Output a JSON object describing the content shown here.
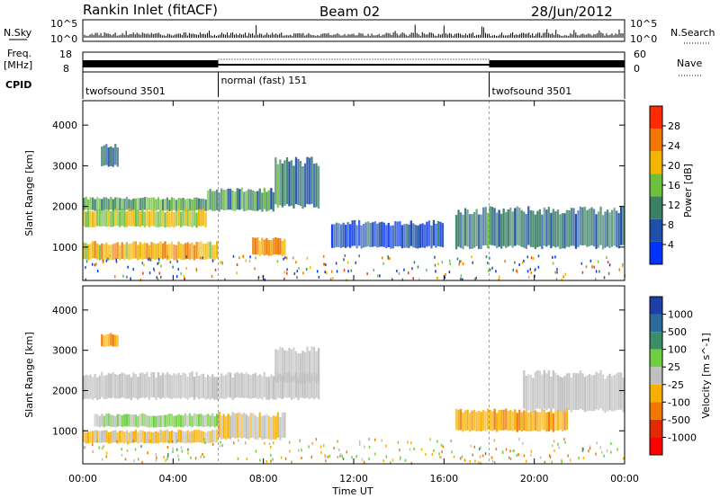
{
  "header": {
    "site": "Rankin Inlet (fitACF)",
    "beam": "Beam 02",
    "date": "28/Jun/2012"
  },
  "panels_left": {
    "nsky": "N.Sky",
    "freq": "Freq.",
    "freq_unit": "[MHz]",
    "cpid": "CPID",
    "ticks_nsky": [
      "10^5",
      "10^0"
    ],
    "ticks_freq": [
      "18",
      "8"
    ]
  },
  "panels_right": {
    "nsearch": "N.Search",
    "nave": "Nave",
    "ticks_nsearch": [
      "10^5",
      "10^0"
    ],
    "ticks_nave": [
      "60",
      "0"
    ]
  },
  "cpid_modes": [
    {
      "label": "twofsound 3501",
      "start": 0,
      "end": 6
    },
    {
      "label": "normal (fast) 151",
      "start": 6,
      "end": 18
    },
    {
      "label": "twofsound 3501",
      "start": 18,
      "end": 24
    }
  ],
  "axes": {
    "x_ticks": [
      "00:00",
      "04:00",
      "08:00",
      "12:00",
      "16:00",
      "20:00",
      "00:00"
    ],
    "x_label": "Time UT",
    "y_label": "Slant Range [km]",
    "y_ticks": [
      "1000",
      "2000",
      "3000",
      "4000"
    ]
  },
  "colorbar_power": {
    "label": "Power [dB]",
    "ticks": [
      "4",
      "8",
      "12",
      "16",
      "20",
      "24",
      "28"
    ],
    "colors": [
      "#0033ff",
      "#1f4fa8",
      "#3a7f66",
      "#6fbf3f",
      "#f2b600",
      "#f07800",
      "#ff2a00"
    ]
  },
  "colorbar_velocity": {
    "label": "Velocity [m s^-1]",
    "ticks": [
      "1000",
      "500",
      "100",
      "25",
      "-25",
      "-100",
      "-500",
      "-1000"
    ],
    "colors": [
      "#1f3fa8",
      "#2b6a9a",
      "#3a8f66",
      "#6fcf3f",
      "#bfbfbf",
      "#f7b000",
      "#f07800",
      "#e02a00",
      "#ff0000"
    ]
  },
  "chart_data": [
    {
      "type": "heatmap",
      "name": "power",
      "title": "Rankin Inlet (fitACF) Beam 02 28/Jun/2012",
      "xlabel": "Time UT",
      "ylabel": "Slant Range [km]",
      "xlim": [
        0,
        24
      ],
      "ylim": [
        180,
        4600
      ],
      "zlabel": "Power [dB]",
      "zlim": [
        0,
        32
      ],
      "bands": [
        {
          "t0": 0.0,
          "t1": 5.5,
          "r0": 1900,
          "r1": 2200,
          "z": 14
        },
        {
          "t0": 0.0,
          "t1": 5.5,
          "r0": 1500,
          "r1": 1900,
          "z": 18
        },
        {
          "t0": 0.0,
          "t1": 6.0,
          "r0": 700,
          "r1": 1100,
          "z": 22
        },
        {
          "t0": 5.5,
          "t1": 8.5,
          "r0": 1900,
          "r1": 2400,
          "z": 12
        },
        {
          "t0": 8.5,
          "t1": 10.5,
          "r0": 2000,
          "r1": 3100,
          "z": 10
        },
        {
          "t0": 7.5,
          "t1": 9.0,
          "r0": 800,
          "r1": 1200,
          "z": 24
        },
        {
          "t0": 11.0,
          "t1": 16.0,
          "r0": 1000,
          "r1": 1600,
          "z": 6
        },
        {
          "t0": 16.5,
          "t1": 24.0,
          "r0": 1000,
          "r1": 1900,
          "z": 10
        },
        {
          "t0": 0.8,
          "t1": 1.6,
          "r0": 3000,
          "r1": 3500,
          "z": 8
        }
      ]
    },
    {
      "type": "heatmap",
      "name": "velocity",
      "xlabel": "Time UT",
      "ylabel": "Slant Range [km]",
      "xlim": [
        0,
        24
      ],
      "ylim": [
        180,
        4600
      ],
      "zlabel": "Velocity [m s^-1]",
      "zlim": [
        -1000,
        1000
      ],
      "bands": [
        {
          "t0": 0.0,
          "t1": 10.5,
          "r0": 1800,
          "r1": 2400,
          "z": 0
        },
        {
          "t0": 0.0,
          "t1": 6.0,
          "r0": 700,
          "r1": 1000,
          "z": -150
        },
        {
          "t0": 0.5,
          "t1": 6.0,
          "r0": 1100,
          "r1": 1400,
          "z": 150
        },
        {
          "t0": 6.0,
          "t1": 9.0,
          "r0": 800,
          "r1": 1400,
          "z": -120
        },
        {
          "t0": 8.5,
          "t1": 10.5,
          "r0": 2200,
          "r1": 3000,
          "z": 0
        },
        {
          "t0": 16.5,
          "t1": 21.5,
          "r0": 1000,
          "r1": 1500,
          "z": -300
        },
        {
          "t0": 19.5,
          "t1": 24.0,
          "r0": 1500,
          "r1": 2400,
          "z": 0
        },
        {
          "t0": 0.8,
          "t1": 1.6,
          "r0": 3100,
          "r1": 3400,
          "z": -300
        }
      ]
    }
  ]
}
